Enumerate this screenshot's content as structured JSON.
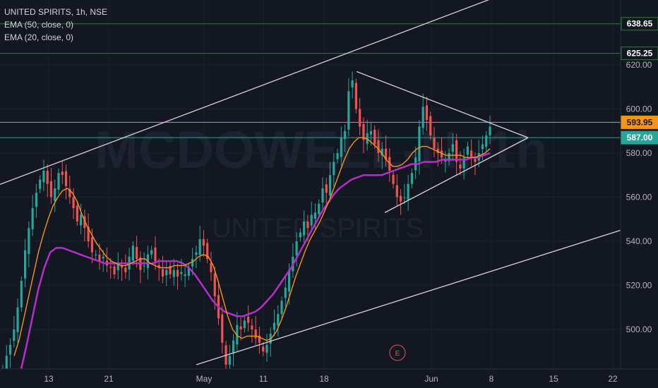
{
  "legend": {
    "title": "UNITED SPIRITS, 1h, NSE",
    "ema50": "EMA (50, close, 0)",
    "ema20": "EMA (20, close, 0)"
  },
  "watermark": {
    "symbol": "MCDOWELL-N, 1h",
    "name": "UNITED SPIRITS"
  },
  "event_marker": "E",
  "colors": {
    "background": "#131722",
    "up": "#26a69a",
    "down": "#ef5350",
    "ema50": "#b52fc7",
    "ema20": "#f7931a",
    "trendline": "#d1d4dc",
    "resistance": "#2e7d32",
    "price_line_orange": "#f7931a",
    "price_line_teal": "#26a69a"
  },
  "chart_data": {
    "type": "candlestick",
    "y_axis": {
      "ticks": [
        "620.00",
        "600.00",
        "580.00",
        "560.00",
        "540.00",
        "520.00",
        "500.00"
      ],
      "range": [
        480,
        658
      ]
    },
    "x_axis": {
      "ticks": [
        "13",
        "21",
        "May",
        "11",
        "18",
        "Jun",
        "8",
        "15",
        "22"
      ]
    },
    "price_labels": [
      {
        "value": 638.65,
        "text": "638.65",
        "style": "green"
      },
      {
        "value": 625.25,
        "text": "625.25",
        "style": "green"
      },
      {
        "value": 593.95,
        "text": "593.95",
        "style": "orange"
      },
      {
        "value": 587.0,
        "text": "587.00",
        "style": "teal"
      }
    ],
    "horizontal_lines": [
      638.65,
      625.25,
      593.95,
      587.0
    ],
    "candle_closes": [
      482,
      488,
      493,
      500,
      510,
      522,
      536,
      546,
      555,
      562,
      568,
      572,
      566,
      560,
      564,
      571,
      570,
      565,
      560,
      555,
      549,
      552,
      546,
      540,
      535,
      534,
      531,
      533,
      529,
      528,
      525,
      530,
      528,
      526,
      533,
      538,
      532,
      527,
      529,
      534,
      536,
      531,
      528,
      524,
      527,
      525,
      527,
      524,
      526,
      525,
      528,
      532,
      535,
      541,
      538,
      532,
      526,
      515,
      505,
      494,
      484,
      488,
      495,
      502,
      500,
      504,
      503,
      500,
      496,
      494,
      490,
      493,
      498,
      503,
      507,
      513,
      519,
      527,
      533,
      540,
      544,
      549,
      546,
      552,
      553,
      557,
      564,
      562,
      570,
      576,
      580,
      587,
      590,
      608,
      613,
      600,
      592,
      586,
      589,
      590,
      584,
      580,
      582,
      577,
      572,
      566,
      560,
      558,
      560,
      566,
      571,
      578,
      592,
      601,
      595,
      588,
      582,
      580,
      578,
      577,
      580,
      584,
      576,
      573,
      578,
      583,
      578,
      576,
      580,
      584,
      588,
      592
    ],
    "ema20": [
      488,
      495,
      505,
      515,
      525,
      535,
      543,
      550,
      556,
      560,
      563,
      564,
      562,
      558,
      552,
      547,
      543,
      539,
      536,
      533,
      531,
      530,
      529,
      529,
      530,
      531,
      532,
      532,
      530,
      529,
      528,
      528,
      528,
      529,
      529,
      529,
      530,
      531,
      533,
      534,
      533,
      529,
      522,
      514,
      506,
      500,
      497,
      496,
      497,
      497,
      497,
      496,
      495,
      496,
      499,
      504,
      510,
      517,
      524,
      530,
      536,
      541,
      545,
      549,
      554,
      559,
      565,
      571,
      577,
      582,
      585,
      587,
      587,
      586,
      584,
      582,
      579,
      576,
      574,
      574,
      575,
      577,
      580,
      582,
      583,
      583,
      582,
      581,
      580,
      579,
      579,
      579,
      579,
      578,
      578,
      578,
      579,
      580,
      582
    ],
    "ema50": [
      470,
      480,
      492,
      505,
      518,
      528,
      535,
      537,
      537,
      536,
      535,
      534,
      533,
      532,
      531,
      530,
      530,
      530,
      530,
      530,
      530,
      530,
      530,
      530,
      531,
      531,
      531,
      531,
      530,
      528,
      525,
      521,
      517,
      513,
      510,
      508,
      507,
      506,
      506,
      507,
      508,
      510,
      513,
      516,
      520,
      524,
      528,
      533,
      538,
      543,
      548,
      553,
      557,
      561,
      564,
      566,
      568,
      569,
      570,
      570,
      570,
      570,
      571,
      572,
      573,
      574,
      575,
      575,
      576,
      576,
      576,
      577,
      577,
      577,
      577,
      577,
      578,
      578,
      579,
      580
    ],
    "trendlines": [
      {
        "name": "channel-upper",
        "from": [
          "Apr 2",
          565.8
        ],
        "to": [
          "Jun 16",
          665
        ]
      },
      {
        "name": "channel-lower",
        "from": [
          "May 1",
          484
        ],
        "to": [
          "Jun 22",
          545
        ]
      },
      {
        "name": "triangle-upper",
        "from": [
          "May 21",
          617
        ],
        "to": [
          "Jun 10",
          587
        ]
      },
      {
        "name": "triangle-lower",
        "from": [
          "May 25",
          553
        ],
        "to": [
          "Jun 10",
          587
        ]
      }
    ]
  }
}
